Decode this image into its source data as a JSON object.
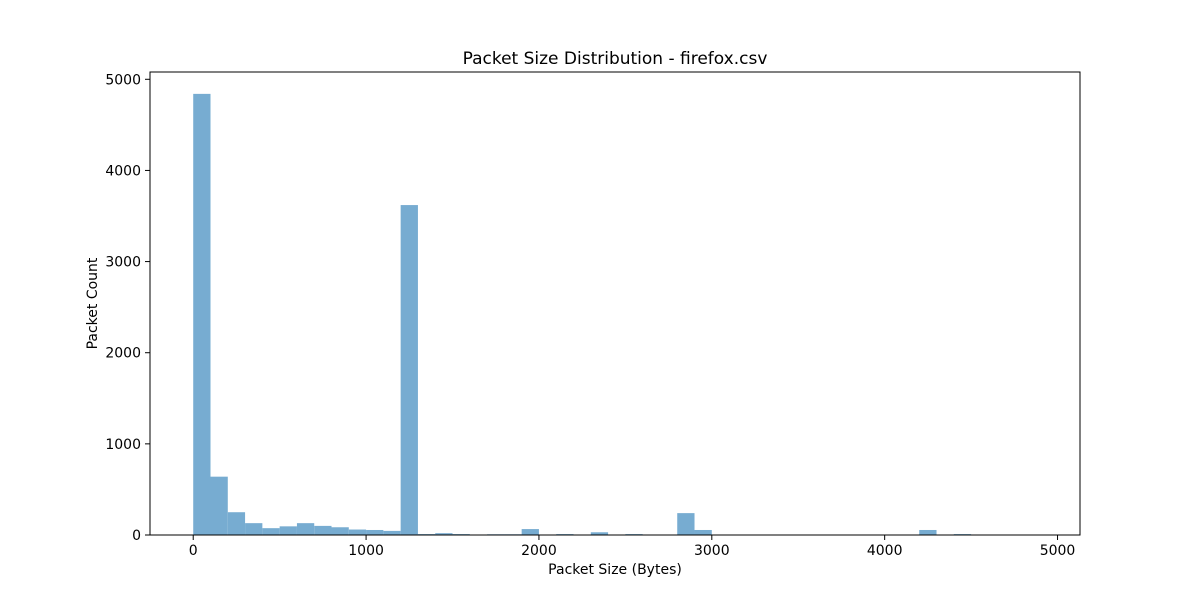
{
  "chart_data": {
    "type": "bar",
    "title": "Packet Size Distribution - firefox.csv",
    "xlabel": "Packet Size (Bytes)",
    "ylabel": "Packet Count",
    "xlim": [
      -250,
      5130
    ],
    "ylim": [
      0,
      5080
    ],
    "xticks": [
      0,
      1000,
      2000,
      3000,
      4000,
      5000
    ],
    "yticks": [
      0,
      1000,
      2000,
      3000,
      4000,
      5000
    ],
    "grid": false,
    "legend": "none",
    "bar_color": "#77acd1",
    "series": [
      {
        "bins": [
          {
            "x0": 0,
            "x1": 100,
            "value": 4840
          },
          {
            "x0": 100,
            "x1": 200,
            "value": 640
          },
          {
            "x0": 200,
            "x1": 300,
            "value": 250
          },
          {
            "x0": 300,
            "x1": 400,
            "value": 130
          },
          {
            "x0": 400,
            "x1": 500,
            "value": 75
          },
          {
            "x0": 500,
            "x1": 600,
            "value": 95
          },
          {
            "x0": 600,
            "x1": 700,
            "value": 130
          },
          {
            "x0": 700,
            "x1": 800,
            "value": 100
          },
          {
            "x0": 800,
            "x1": 900,
            "value": 85
          },
          {
            "x0": 900,
            "x1": 1000,
            "value": 60
          },
          {
            "x0": 1000,
            "x1": 1100,
            "value": 55
          },
          {
            "x0": 1100,
            "x1": 1200,
            "value": 45
          },
          {
            "x0": 1200,
            "x1": 1300,
            "value": 3620
          },
          {
            "x0": 1300,
            "x1": 1400,
            "value": 10
          },
          {
            "x0": 1400,
            "x1": 1500,
            "value": 20
          },
          {
            "x0": 1500,
            "x1": 1600,
            "value": 10
          },
          {
            "x0": 1700,
            "x1": 1800,
            "value": 8
          },
          {
            "x0": 1800,
            "x1": 1900,
            "value": 8
          },
          {
            "x0": 1900,
            "x1": 2000,
            "value": 65
          },
          {
            "x0": 2100,
            "x1": 2200,
            "value": 10
          },
          {
            "x0": 2300,
            "x1": 2400,
            "value": 30
          },
          {
            "x0": 2500,
            "x1": 2600,
            "value": 10
          },
          {
            "x0": 2700,
            "x1": 2800,
            "value": 5
          },
          {
            "x0": 2800,
            "x1": 2900,
            "value": 240
          },
          {
            "x0": 2900,
            "x1": 3000,
            "value": 55
          },
          {
            "x0": 4200,
            "x1": 4300,
            "value": 55
          },
          {
            "x0": 4400,
            "x1": 4500,
            "value": 10
          }
        ]
      }
    ]
  }
}
